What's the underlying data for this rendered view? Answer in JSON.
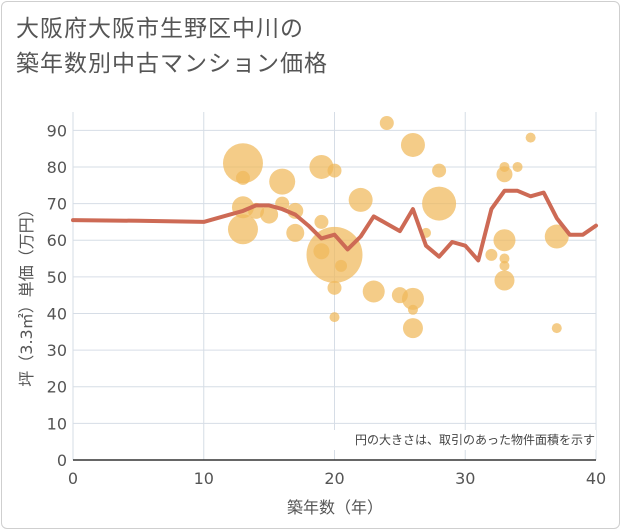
{
  "chart_data": {
    "type": "scatter",
    "title_line1": "大阪府大阪市生野区中川の",
    "title_line2": "築年数別中古マンション価格",
    "xlabel": "築年数（年）",
    "ylabel": "坪（3.3㎡）単価（万円）",
    "note": "円の大きさは、取引のあった物件面積を示す",
    "xlim": [
      0,
      40
    ],
    "ylim": [
      0,
      95
    ],
    "x_ticks": [
      0,
      10,
      20,
      30,
      40
    ],
    "y_ticks": [
      0,
      10,
      20,
      30,
      40,
      50,
      60,
      70,
      80,
      90
    ],
    "bubble_color": "#f0b95a",
    "line_color": "#cd6a55",
    "bubbles": [
      {
        "x": 13,
        "y": 81,
        "s": 20
      },
      {
        "x": 13,
        "y": 77,
        "s": 7
      },
      {
        "x": 13,
        "y": 69,
        "s": 11
      },
      {
        "x": 13,
        "y": 63,
        "s": 15
      },
      {
        "x": 14,
        "y": 68,
        "s": 8
      },
      {
        "x": 15,
        "y": 67,
        "s": 9
      },
      {
        "x": 16,
        "y": 76,
        "s": 13
      },
      {
        "x": 16,
        "y": 70,
        "s": 7
      },
      {
        "x": 17,
        "y": 68,
        "s": 8
      },
      {
        "x": 17,
        "y": 62,
        "s": 9
      },
      {
        "x": 19,
        "y": 80,
        "s": 12
      },
      {
        "x": 19,
        "y": 65,
        "s": 7
      },
      {
        "x": 19,
        "y": 57,
        "s": 8
      },
      {
        "x": 20,
        "y": 79,
        "s": 7
      },
      {
        "x": 20,
        "y": 56,
        "s": 28
      },
      {
        "x": 20,
        "y": 47,
        "s": 7
      },
      {
        "x": 20,
        "y": 39,
        "s": 5
      },
      {
        "x": 20.5,
        "y": 53,
        "s": 6
      },
      {
        "x": 22,
        "y": 71,
        "s": 12
      },
      {
        "x": 23,
        "y": 46,
        "s": 11
      },
      {
        "x": 24,
        "y": 92,
        "s": 7
      },
      {
        "x": 25,
        "y": 45,
        "s": 8
      },
      {
        "x": 26,
        "y": 86,
        "s": 12
      },
      {
        "x": 26,
        "y": 44,
        "s": 11
      },
      {
        "x": 26,
        "y": 41,
        "s": 5
      },
      {
        "x": 26,
        "y": 36,
        "s": 10
      },
      {
        "x": 27,
        "y": 62,
        "s": 5
      },
      {
        "x": 28,
        "y": 79,
        "s": 7
      },
      {
        "x": 28,
        "y": 70,
        "s": 17
      },
      {
        "x": 32,
        "y": 56,
        "s": 6
      },
      {
        "x": 33,
        "y": 80,
        "s": 5
      },
      {
        "x": 33,
        "y": 78,
        "s": 8
      },
      {
        "x": 33,
        "y": 60,
        "s": 11
      },
      {
        "x": 33,
        "y": 55,
        "s": 5
      },
      {
        "x": 33,
        "y": 53,
        "s": 5
      },
      {
        "x": 33,
        "y": 49,
        "s": 10
      },
      {
        "x": 34,
        "y": 80,
        "s": 5
      },
      {
        "x": 35,
        "y": 88,
        "s": 5
      },
      {
        "x": 37,
        "y": 61,
        "s": 12
      },
      {
        "x": 37,
        "y": 36,
        "s": 5
      }
    ],
    "trend_line": [
      {
        "x": 0,
        "y": 65.5
      },
      {
        "x": 5,
        "y": 65.3
      },
      {
        "x": 10,
        "y": 65
      },
      {
        "x": 12,
        "y": 67
      },
      {
        "x": 13,
        "y": 68
      },
      {
        "x": 14,
        "y": 69.5
      },
      {
        "x": 15,
        "y": 69.5
      },
      {
        "x": 16,
        "y": 68.5
      },
      {
        "x": 17,
        "y": 67
      },
      {
        "x": 18,
        "y": 64
      },
      {
        "x": 19,
        "y": 60.5
      },
      {
        "x": 20,
        "y": 61.5
      },
      {
        "x": 21,
        "y": 57.5
      },
      {
        "x": 22,
        "y": 61
      },
      {
        "x": 23,
        "y": 66.5
      },
      {
        "x": 24,
        "y": 64.5
      },
      {
        "x": 25,
        "y": 62.5
      },
      {
        "x": 26,
        "y": 68.5
      },
      {
        "x": 27,
        "y": 58.5
      },
      {
        "x": 28,
        "y": 55.5
      },
      {
        "x": 29,
        "y": 59.5
      },
      {
        "x": 30,
        "y": 58.5
      },
      {
        "x": 31,
        "y": 54.5
      },
      {
        "x": 32,
        "y": 68.5
      },
      {
        "x": 33,
        "y": 73.5
      },
      {
        "x": 34,
        "y": 73.5
      },
      {
        "x": 35,
        "y": 72
      },
      {
        "x": 36,
        "y": 73
      },
      {
        "x": 37,
        "y": 66
      },
      {
        "x": 38,
        "y": 61.5
      },
      {
        "x": 39,
        "y": 61.5
      },
      {
        "x": 40,
        "y": 64
      }
    ]
  }
}
